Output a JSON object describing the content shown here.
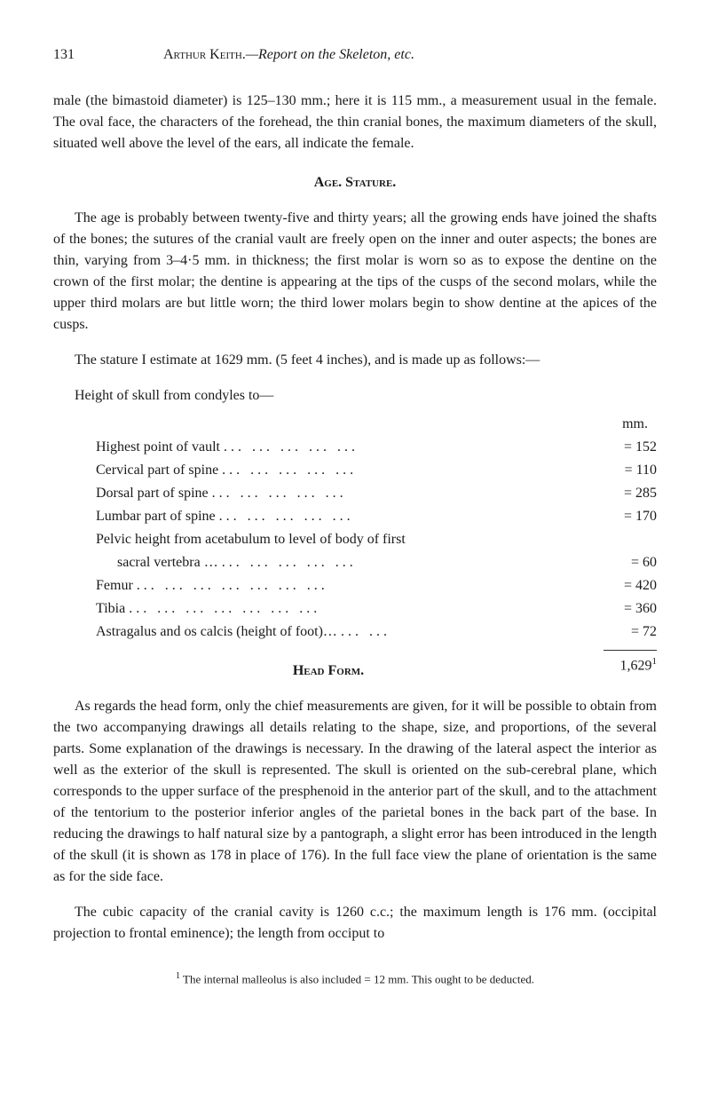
{
  "header": {
    "page_number": "131",
    "author": "Arthur Keith.",
    "title_label": "—Report on the Skeleton, etc."
  },
  "paragraphs": {
    "intro": "male (the bimastoid diameter) is 125–130 mm.; here it is 115 mm., a measurement usual in the female. The oval face, the characters of the forehead, the thin cranial bones, the maximum diameters of the skull, situated well above the level of the ears, all indicate the female.",
    "age_heading": "Age. Stature.",
    "age_para_1": "The age is probably between twenty-five and thirty years; all the growing ends have joined the shafts of the bones; the sutures of the cranial vault are freely open on the inner and outer aspects; the bones are thin, varying from 3–4·5 mm. in thickness; the first molar is worn so as to expose the dentine on the crown of the first molar; the dentine is appearing at the tips of the cusps of the second molars, while the upper third molars are but little worn; the third lower molars begin to show dentine at the apices of the cusps.",
    "age_para_2": "The stature I estimate at 1629 mm. (5 feet 4 inches), and is made up as follows:—",
    "measurements_intro": "Height of skull from condyles to—",
    "head_form_heading": "Head Form.",
    "head_form_para_1": "As regards the head form, only the chief measurements are given, for it will be possible to obtain from the two accompanying drawings all details relating to the shape, size, and proportions, of the several parts. Some explanation of the drawings is necessary. In the drawing of the lateral aspect the interior as well as the exterior of the skull is represented. The skull is oriented on the sub-cerebral plane, which corresponds to the upper surface of the presphenoid in the anterior part of the skull, and to the attachment of the tentorium to the posterior inferior angles of the parietal bones in the back part of the base. In reducing the drawings to half natural size by a pantograph, a slight error has been introduced in the length of the skull (it is shown as 178 in place of 176). In the full face view the plane of orientation is the same as for the side face.",
    "head_form_para_2": "The cubic capacity of the cranial cavity is 1260 c.c.; the maximum length is 176 mm. (occipital projection to frontal eminence); the length from occiput to"
  },
  "measurements": {
    "unit": "mm.",
    "rows": [
      {
        "label": "Highest point of vault",
        "value": "= 152"
      },
      {
        "label": "Cervical part of spine",
        "value": "= 110"
      },
      {
        "label": "Dorsal part of spine",
        "value": "= 285"
      },
      {
        "label": "Lumbar part of spine",
        "value": "= 170"
      },
      {
        "label_line1": "Pelvic height from acetabulum to level of body of first",
        "label_line2": "sacral vertebra …",
        "value": "=  60"
      },
      {
        "label": "Femur",
        "value": "= 420"
      },
      {
        "label": "Tibia",
        "value": "= 360"
      },
      {
        "label": "Astragalus and os calcis (height of foot)…",
        "value": "=  72"
      }
    ],
    "total": "1,629",
    "total_sup": "1"
  },
  "footnote": {
    "marker": "1",
    "text": " The internal malleolus is also included = 12 mm. This ought to be deducted."
  }
}
